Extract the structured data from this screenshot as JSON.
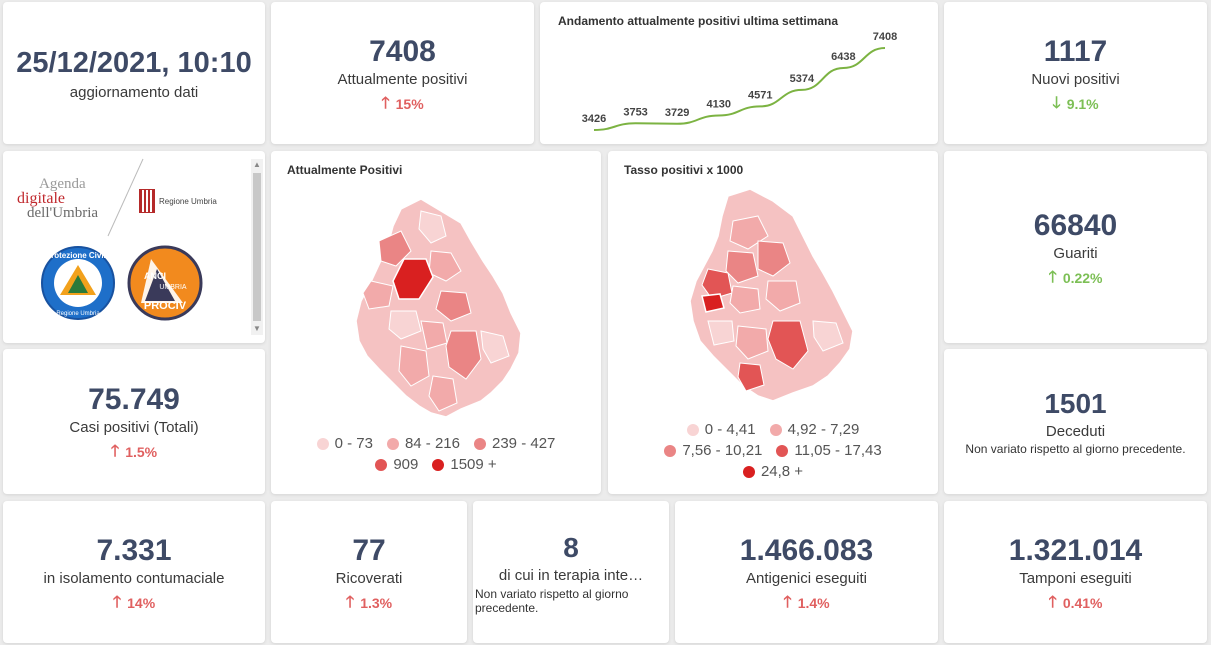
{
  "update": {
    "datetime": "25/12/2021, 10:10",
    "label": "aggiornamento dati"
  },
  "positivi": {
    "value": "7408",
    "label": "Attualmente positivi",
    "delta": "15%",
    "trend": "up"
  },
  "weekly_chart": {
    "title": "Andamento attualmente positivi ultima settimana",
    "chart_data": {
      "type": "line",
      "values": [
        3426,
        3753,
        3729,
        4130,
        4571,
        5374,
        6438,
        7408
      ],
      "labels": [
        "3426",
        "3753",
        "3729",
        "4130",
        "4571",
        "5374",
        "6438",
        "7408"
      ],
      "color": "#7cb342"
    }
  },
  "nuovi": {
    "value": "1117",
    "label": "Nuovi positivi",
    "delta": "9.1%",
    "trend": "down"
  },
  "logos": {
    "agenda_top": "Agenda",
    "agenda_mid": "digitale",
    "agenda_bottom": "dell'Umbria",
    "regione": "Regione Umbria",
    "protezione_top": "Protezione Civile",
    "protezione_bottom": "Regione Umbria",
    "anci_top": "ANCI",
    "anci_mid": "UMBRIA",
    "anci_bottom": "PROCIV"
  },
  "map1": {
    "title": "Attualmente Positivi",
    "legend": [
      {
        "label": "0 - 73",
        "color": "#f8d4d4"
      },
      {
        "label": "84 - 216",
        "color": "#f2aaaa"
      },
      {
        "label": "239 - 427",
        "color": "#ea8585"
      },
      {
        "label": "909",
        "color": "#e25555"
      },
      {
        "label": "1509 +",
        "color": "#d92020"
      }
    ]
  },
  "map2": {
    "title": "Tasso positivi x 1000",
    "legend": [
      {
        "label": "0 - 4,41",
        "color": "#f8d4d4"
      },
      {
        "label": "4,92 - 7,29",
        "color": "#f2aaaa"
      },
      {
        "label": "7,56 - 10,21",
        "color": "#ea8585"
      },
      {
        "label": "11,05 - 17,43",
        "color": "#e25555"
      },
      {
        "label": "24,8 +",
        "color": "#d92020"
      }
    ]
  },
  "guariti": {
    "value": "66840",
    "label": "Guariti",
    "delta": "0.22%",
    "trend": "up"
  },
  "casi": {
    "value": "75.749",
    "label": "Casi positivi (Totali)",
    "delta": "1.5%",
    "trend": "up"
  },
  "deceduti": {
    "value": "1501",
    "label": "Deceduti",
    "note": "Non variato rispetto al giorno precedente."
  },
  "isolamento": {
    "value": "7.331",
    "label": "in isolamento contumaciale",
    "delta": "14%",
    "trend": "up"
  },
  "ricoverati": {
    "value": "77",
    "label": "Ricoverati",
    "delta": "1.3%",
    "trend": "up"
  },
  "terapia": {
    "value": "8",
    "label": "di cui in terapia inte…",
    "note": "Non variato rispetto al giorno precedente."
  },
  "antigenici": {
    "value": "1.466.083",
    "label": "Antigenici eseguiti",
    "delta": "1.4%",
    "trend": "up"
  },
  "tamponi": {
    "value": "1.321.014",
    "label": "Tamponi eseguiti",
    "delta": "0.41%",
    "trend": "up"
  },
  "arrows": {
    "up": "🡑",
    "down": "🡓"
  }
}
